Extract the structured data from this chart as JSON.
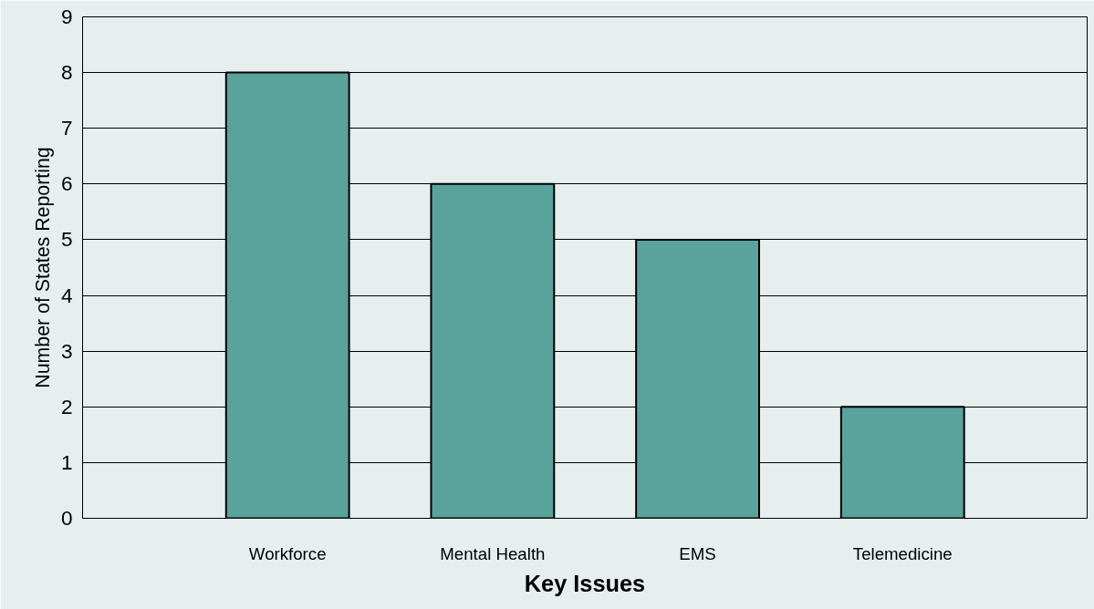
{
  "chart_data": {
    "type": "bar",
    "xlabel": "Key Issues",
    "ylabel": "Number of States Reporting",
    "categories": [
      "Workforce",
      "Mental Health",
      "EMS",
      "Telemedicine"
    ],
    "values": [
      8,
      6,
      5,
      2
    ],
    "color": "#5aa39c",
    "ylim": [
      0,
      9
    ],
    "yticks": [
      0,
      1,
      2,
      3,
      4,
      5,
      6,
      7,
      8,
      9
    ],
    "grid": "y"
  }
}
